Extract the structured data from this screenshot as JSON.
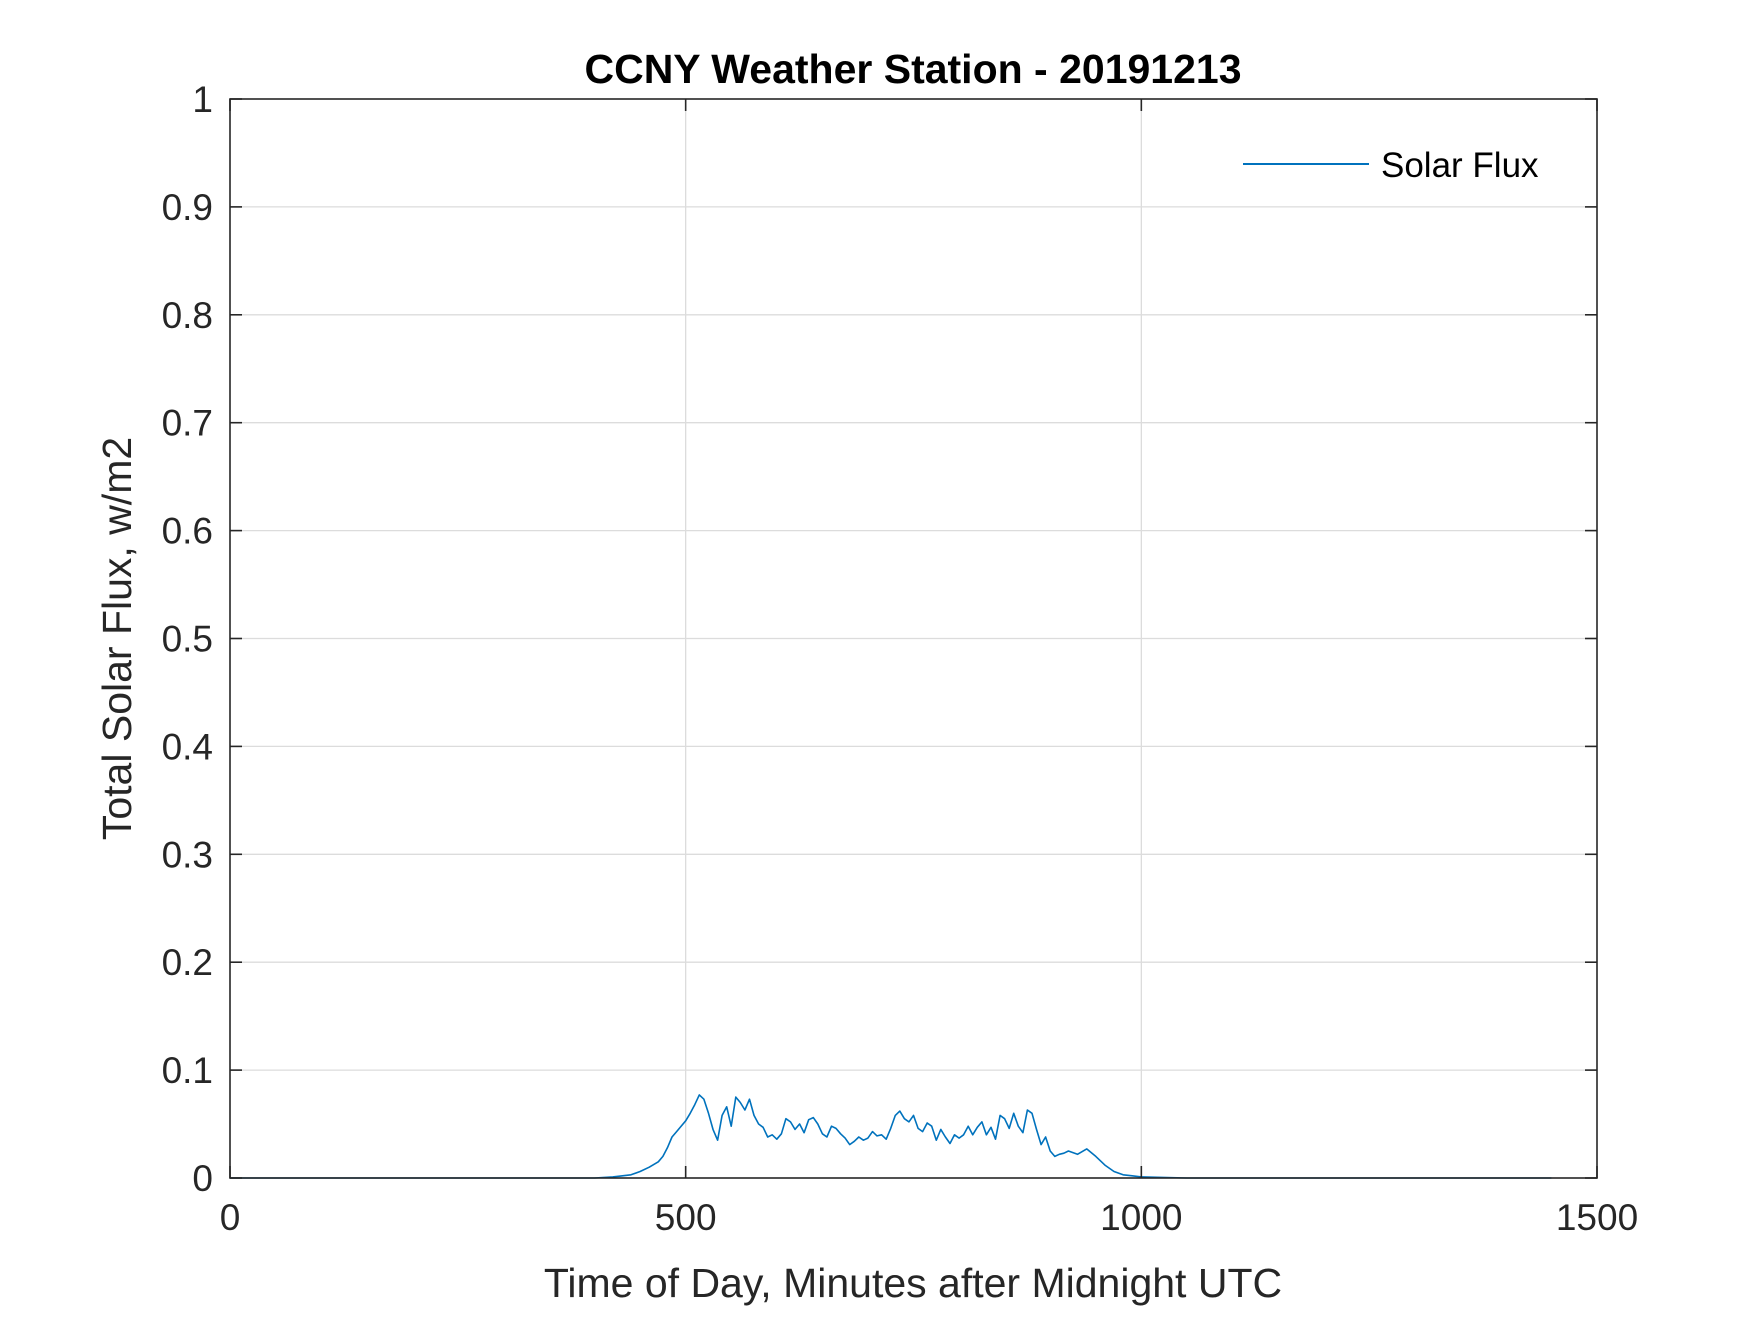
{
  "chart_data": {
    "type": "line",
    "title": "CCNY Weather Station - 20191213",
    "xlabel": "Time of Day, Minutes after Midnight UTC",
    "ylabel": "Total Solar Flux, w/m2",
    "xlim": [
      0,
      1500
    ],
    "ylim": [
      0,
      1
    ],
    "xticks": [
      0,
      500,
      1000,
      1500
    ],
    "xtick_labels": [
      "0",
      "500",
      "1000",
      "1500"
    ],
    "yticks": [
      0,
      0.1,
      0.2,
      0.3,
      0.4,
      0.5,
      0.6,
      0.7,
      0.8,
      0.9,
      1
    ],
    "ytick_labels": [
      "0",
      "0.1",
      "0.2",
      "0.3",
      "0.4",
      "0.5",
      "0.6",
      "0.7",
      "0.8",
      "0.9",
      "1"
    ],
    "grid": true,
    "legend_position": "top-right",
    "series": [
      {
        "name": "Solar Flux",
        "color": "#0072bd",
        "x": [
          0,
          400,
          420,
          440,
          450,
          460,
          470,
          475,
          480,
          485,
          490,
          495,
          500,
          505,
          510,
          515,
          520,
          525,
          530,
          535,
          540,
          545,
          550,
          555,
          560,
          565,
          570,
          575,
          580,
          585,
          590,
          595,
          600,
          605,
          610,
          615,
          620,
          625,
          630,
          635,
          640,
          645,
          650,
          655,
          660,
          665,
          670,
          675,
          680,
          685,
          690,
          695,
          700,
          705,
          710,
          715,
          720,
          725,
          730,
          735,
          740,
          745,
          750,
          755,
          760,
          765,
          770,
          775,
          780,
          785,
          790,
          795,
          800,
          805,
          810,
          815,
          820,
          825,
          830,
          835,
          840,
          845,
          850,
          855,
          860,
          865,
          870,
          875,
          880,
          885,
          890,
          895,
          900,
          905,
          910,
          915,
          920,
          930,
          940,
          950,
          960,
          970,
          980,
          990,
          1000,
          1050,
          1450
        ],
        "y": [
          0,
          0,
          0.001,
          0.003,
          0.006,
          0.01,
          0.015,
          0.02,
          0.028,
          0.038,
          0.043,
          0.048,
          0.053,
          0.06,
          0.068,
          0.077,
          0.073,
          0.06,
          0.045,
          0.035,
          0.058,
          0.066,
          0.048,
          0.075,
          0.07,
          0.063,
          0.073,
          0.058,
          0.05,
          0.047,
          0.038,
          0.04,
          0.036,
          0.041,
          0.055,
          0.052,
          0.045,
          0.05,
          0.042,
          0.054,
          0.056,
          0.05,
          0.041,
          0.038,
          0.048,
          0.046,
          0.041,
          0.037,
          0.031,
          0.034,
          0.038,
          0.035,
          0.037,
          0.043,
          0.039,
          0.04,
          0.036,
          0.046,
          0.058,
          0.062,
          0.055,
          0.052,
          0.058,
          0.046,
          0.043,
          0.051,
          0.048,
          0.035,
          0.045,
          0.038,
          0.032,
          0.04,
          0.037,
          0.04,
          0.048,
          0.04,
          0.047,
          0.052,
          0.04,
          0.047,
          0.036,
          0.058,
          0.055,
          0.046,
          0.06,
          0.048,
          0.042,
          0.063,
          0.06,
          0.045,
          0.031,
          0.038,
          0.025,
          0.02,
          0.022,
          0.023,
          0.025,
          0.022,
          0.027,
          0.02,
          0.012,
          0.006,
          0.003,
          0.002,
          0.001,
          0,
          0
        ]
      }
    ]
  }
}
